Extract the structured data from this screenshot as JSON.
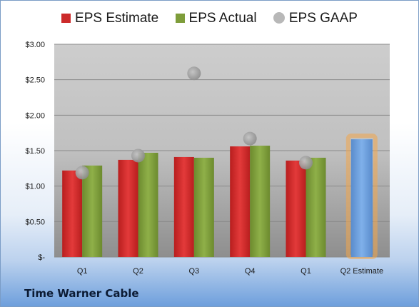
{
  "company": "Time Warner Cable",
  "chart_data": {
    "type": "bar",
    "categories": [
      "Q1",
      "Q2",
      "Q3",
      "Q4",
      "Q1",
      "Q2 Estimate"
    ],
    "ylim": [
      0,
      3
    ],
    "yticks": [
      {
        "value": 0,
        "label": "$-"
      },
      {
        "value": 0.5,
        "label": "$0.50"
      },
      {
        "value": 1.0,
        "label": "$1.00"
      },
      {
        "value": 1.5,
        "label": "$1.50"
      },
      {
        "value": 2.0,
        "label": "$2.00"
      },
      {
        "value": 2.5,
        "label": "$2.50"
      },
      {
        "value": 3.0,
        "label": "$3.00"
      }
    ],
    "grid": true,
    "legend_position": "top",
    "series": [
      {
        "name": "EPS Estimate",
        "color": "#cc2a2a",
        "values": [
          1.22,
          1.37,
          1.41,
          1.56,
          1.36,
          null
        ]
      },
      {
        "name": "EPS Actual",
        "color": "#7e9d3a",
        "values": [
          1.29,
          1.47,
          1.4,
          1.57,
          1.4,
          null
        ]
      },
      {
        "name": "EPS GAAP",
        "color": "#a9a9a9",
        "kind": "point",
        "values": [
          1.19,
          1.43,
          2.59,
          1.67,
          1.33,
          null
        ]
      }
    ],
    "estimate": {
      "category": "Q2 Estimate",
      "value": 1.66,
      "color": "#6d9edb",
      "glow": "#f3a64a"
    }
  }
}
